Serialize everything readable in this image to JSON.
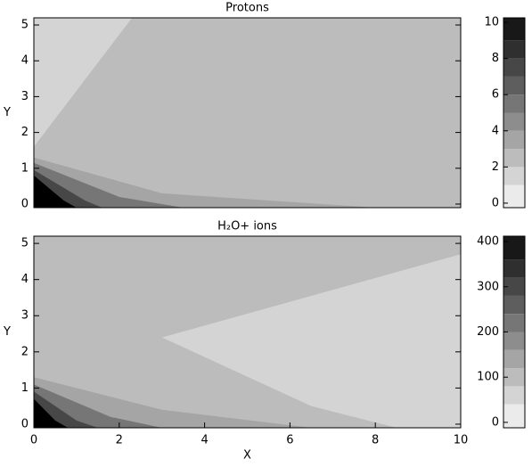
{
  "chart_data": [
    {
      "type": "contour",
      "title": "Protons",
      "ylabel": "Y",
      "xlim": [
        0,
        10
      ],
      "ylim": [
        -0.1,
        5.2
      ],
      "yticks": [
        0,
        1,
        2,
        3,
        4,
        5
      ],
      "background_level": 2.5,
      "regions": [
        {
          "level": 1,
          "x": [
            0,
            2.3,
            0
          ],
          "y": [
            5.2,
            5.2,
            1.6
          ]
        },
        {
          "level": 3.5,
          "x": [
            0,
            3,
            8,
            0
          ],
          "y": [
            1.3,
            0.3,
            -0.1,
            -0.1
          ]
        },
        {
          "level": 5.5,
          "x": [
            0,
            2,
            3.5,
            0
          ],
          "y": [
            1.15,
            0.2,
            -0.1,
            -0.1
          ]
        },
        {
          "level": 7.5,
          "x": [
            0,
            1.2,
            1.6,
            0
          ],
          "y": [
            0.95,
            0.1,
            -0.1,
            -0.1
          ]
        },
        {
          "level": 10,
          "x": [
            0,
            0.7,
            1,
            0
          ],
          "y": [
            0.8,
            0.1,
            -0.1,
            -0.1
          ]
        }
      ],
      "colorbar": {
        "lim": [
          -0.25,
          10.25
        ],
        "ticks": [
          0,
          2,
          4,
          6,
          8,
          10
        ],
        "levels": [
          0,
          1,
          2,
          3,
          4,
          5,
          6,
          7,
          8,
          9,
          10
        ]
      }
    },
    {
      "type": "contour",
      "title": "H₂O+ ions",
      "ylabel": "Y",
      "xlabel": "X",
      "xlim": [
        0,
        10
      ],
      "ylim": [
        -0.1,
        5.2
      ],
      "xticks": [
        0,
        2,
        4,
        6,
        8,
        10
      ],
      "yticks": [
        0,
        1,
        2,
        3,
        4,
        5
      ],
      "background_level": 110,
      "regions": [
        {
          "level": 50,
          "x": [
            10,
            3,
            6.5,
            8.5,
            10
          ],
          "y": [
            4.7,
            2.4,
            0.5,
            -0.1,
            -0.1
          ]
        },
        {
          "level": 150,
          "x": [
            0,
            3,
            6.5,
            0
          ],
          "y": [
            1.3,
            0.4,
            -0.1,
            -0.1
          ]
        },
        {
          "level": 230,
          "x": [
            0,
            1.8,
            3,
            0
          ],
          "y": [
            1.1,
            0.2,
            -0.1,
            -0.1
          ]
        },
        {
          "level": 310,
          "x": [
            0,
            1,
            1.5,
            0
          ],
          "y": [
            0.9,
            0.1,
            -0.1,
            -0.1
          ]
        },
        {
          "level": 400,
          "x": [
            0,
            0.5,
            0.8,
            0
          ],
          "y": [
            0.7,
            0.1,
            -0.1,
            -0.1
          ]
        }
      ],
      "colorbar": {
        "lim": [
          -12,
          412
        ],
        "ticks": [
          0,
          100,
          200,
          300,
          400
        ],
        "levels": [
          0,
          40,
          80,
          120,
          160,
          200,
          240,
          280,
          320,
          360,
          400
        ]
      }
    }
  ]
}
